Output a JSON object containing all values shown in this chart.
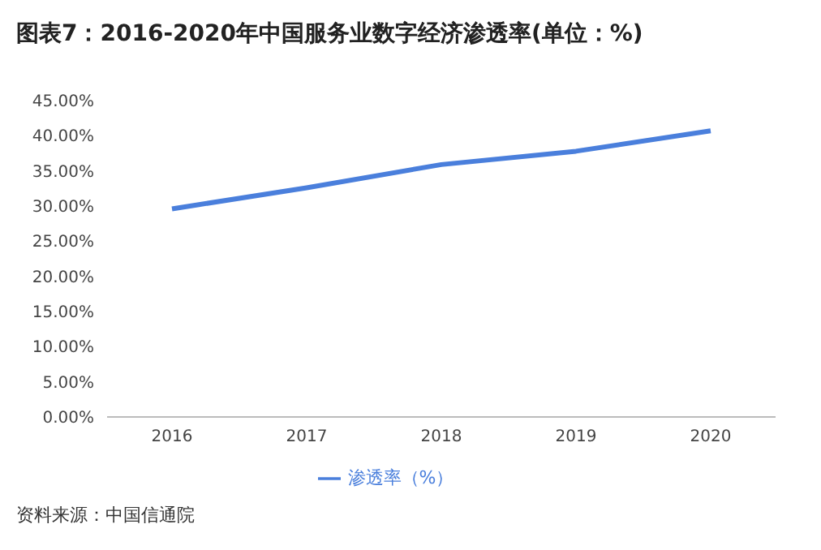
{
  "chart_data": {
    "type": "line",
    "title": "图表7：2016-2020年中国服务业数字经济渗透率(单位：%)",
    "categories": [
      "2016",
      "2017",
      "2018",
      "2019",
      "2020"
    ],
    "series": [
      {
        "name": "渗透率（%）",
        "color": "#4a7fdc",
        "values": [
          29.6,
          32.6,
          35.9,
          37.8,
          40.7
        ]
      }
    ],
    "ylim": [
      0,
      45
    ],
    "yticks": [
      {
        "value": 0,
        "label": "0.00%"
      },
      {
        "value": 5,
        "label": "5.00%"
      },
      {
        "value": 10,
        "label": "10.00%"
      },
      {
        "value": 15,
        "label": "15.00%"
      },
      {
        "value": 20,
        "label": "20.00%"
      },
      {
        "value": 25,
        "label": "25.00%"
      },
      {
        "value": 30,
        "label": "30.00%"
      },
      {
        "value": 35,
        "label": "35.00%"
      },
      {
        "value": 40,
        "label": "40.00%"
      },
      {
        "value": 45,
        "label": "45.00%"
      }
    ],
    "grid": false,
    "legend": "bottom",
    "marker": "none",
    "line_style": "solid",
    "annotations": [
      "资料来源：中国信通院"
    ]
  }
}
